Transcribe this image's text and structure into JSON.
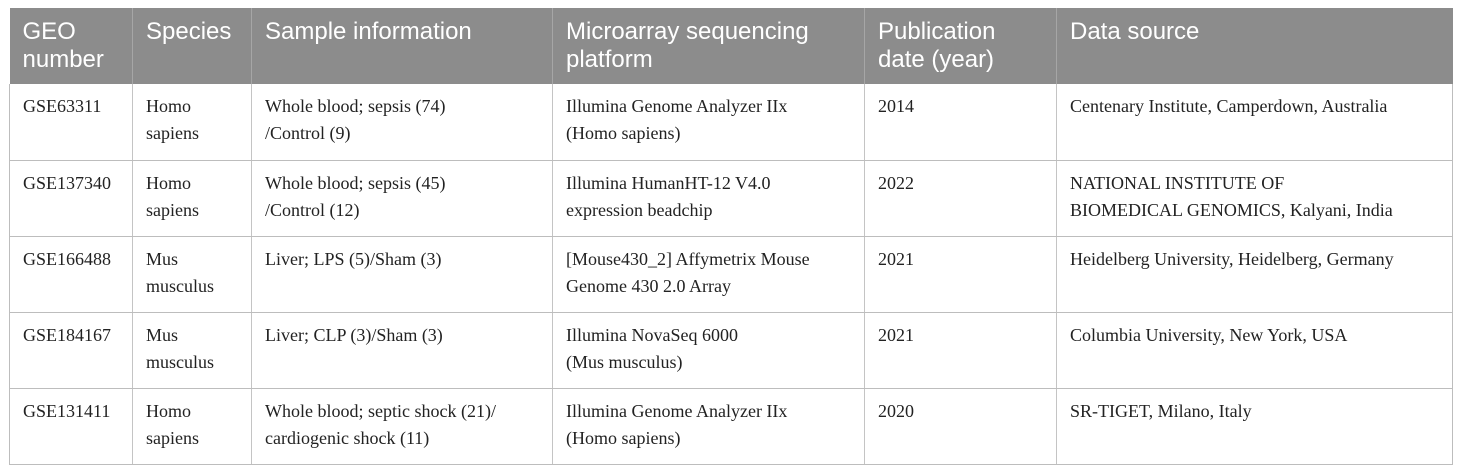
{
  "table": {
    "headers": [
      "GEO\nnumber",
      "Species",
      "Sample information",
      "Microarray sequencing\nplatform",
      "Publication\ndate (year)",
      "Data source"
    ],
    "rows": [
      [
        "GSE63311",
        "Homo\nsapiens",
        "Whole blood; sepsis (74)\n/Control (9)",
        "Illumina Genome Analyzer IIx\n(Homo sapiens)",
        "2014",
        "Centenary Institute, Camperdown, Australia"
      ],
      [
        "GSE137340",
        "Homo\nsapiens",
        "Whole blood; sepsis (45)\n/Control (12)",
        "Illumina HumanHT-12 V4.0\nexpression beadchip",
        "2022",
        "NATIONAL INSTITUTE OF\nBIOMEDICAL GENOMICS, Kalyani, India"
      ],
      [
        "GSE166488",
        "Mus\nmusculus",
        "Liver; LPS (5)/Sham (3)",
        "[Mouse430_2] Affymetrix Mouse\nGenome 430 2.0 Array",
        "2021",
        "Heidelberg University, Heidelberg, Germany"
      ],
      [
        "GSE184167",
        "Mus\nmusculus",
        "Liver; CLP (3)/Sham (3)",
        "Illumina NovaSeq 6000\n(Mus musculus)",
        "2021",
        "Columbia University, New York, USA"
      ],
      [
        "GSE131411",
        "Homo\nsapiens",
        "Whole blood; septic shock (21)/\ncardiogenic shock (11)",
        "Illumina Genome Analyzer IIx\n(Homo sapiens)",
        "2020",
        "SR-TIGET, Milano, Italy"
      ]
    ]
  }
}
